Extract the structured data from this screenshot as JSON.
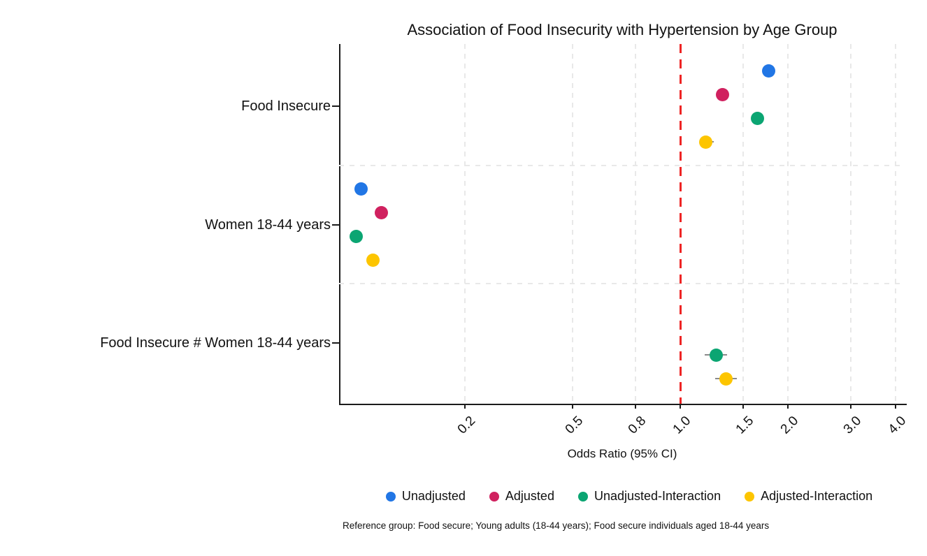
{
  "chart_data": {
    "type": "scatter",
    "subtype": "forest-plot-dots",
    "title": "Association of Food Insecurity with Hypertension by Age Group",
    "x_axis": {
      "label": "Odds Ratio (95% CI)",
      "scale": "log",
      "range": [
        0.111,
        4.26
      ],
      "tick_values": [
        0.25,
        0.5,
        0.75,
        1.0,
        1.5,
        2.0,
        3.0,
        4.0
      ],
      "tick_labels": [
        "0.2",
        "0.5",
        "0.8",
        "1.0",
        "1.5",
        "2.0",
        "3.0",
        "4.0"
      ],
      "tick_label_rotation": 45,
      "grid": "dashed"
    },
    "y_axis": {
      "categories": [
        "Food Insecure",
        "Women 18-44 years",
        "Food Insecure # Women 18-44 years"
      ]
    },
    "reference_line": {
      "value": 1.0,
      "color": "#ee2424",
      "style": "dashed"
    },
    "series": [
      {
        "name": "Unadjusted",
        "color": "#2176e5",
        "points": [
          {
            "group": 0,
            "or": 1.77,
            "ci": null
          },
          {
            "group": 1,
            "or": 0.128,
            "ci": null
          }
        ]
      },
      {
        "name": "Adjusted",
        "color": "#d0215f",
        "points": [
          {
            "group": 0,
            "or": 1.31,
            "ci": null
          },
          {
            "group": 1,
            "or": 0.146,
            "ci": null
          }
        ]
      },
      {
        "name": "Unadjusted-Interaction",
        "color": "#0ba572",
        "points": [
          {
            "group": 0,
            "or": 1.64,
            "ci": null
          },
          {
            "group": 1,
            "or": 0.124,
            "ci": null
          },
          {
            "group": 2,
            "or": 1.26,
            "ci": [
              1.17,
              1.35
            ]
          }
        ]
      },
      {
        "name": "Adjusted-Interaction",
        "color": "#fdc500",
        "points": [
          {
            "group": 0,
            "or": 1.18,
            "ci": [
              1.14,
              1.24
            ]
          },
          {
            "group": 1,
            "or": 0.138,
            "ci": null
          },
          {
            "group": 2,
            "or": 1.34,
            "ci": [
              1.25,
              1.44
            ]
          }
        ]
      }
    ],
    "legend_position": "bottom",
    "footnote": "Reference group: Food secure; Young adults (18-44 years); Food secure individuals aged 18-44 years"
  },
  "colors": {
    "background": "#ffffff",
    "axis": "#1b1b1b",
    "grid": "#e8e8e8",
    "whisker": "#8a8a8a",
    "text": "#111111"
  }
}
